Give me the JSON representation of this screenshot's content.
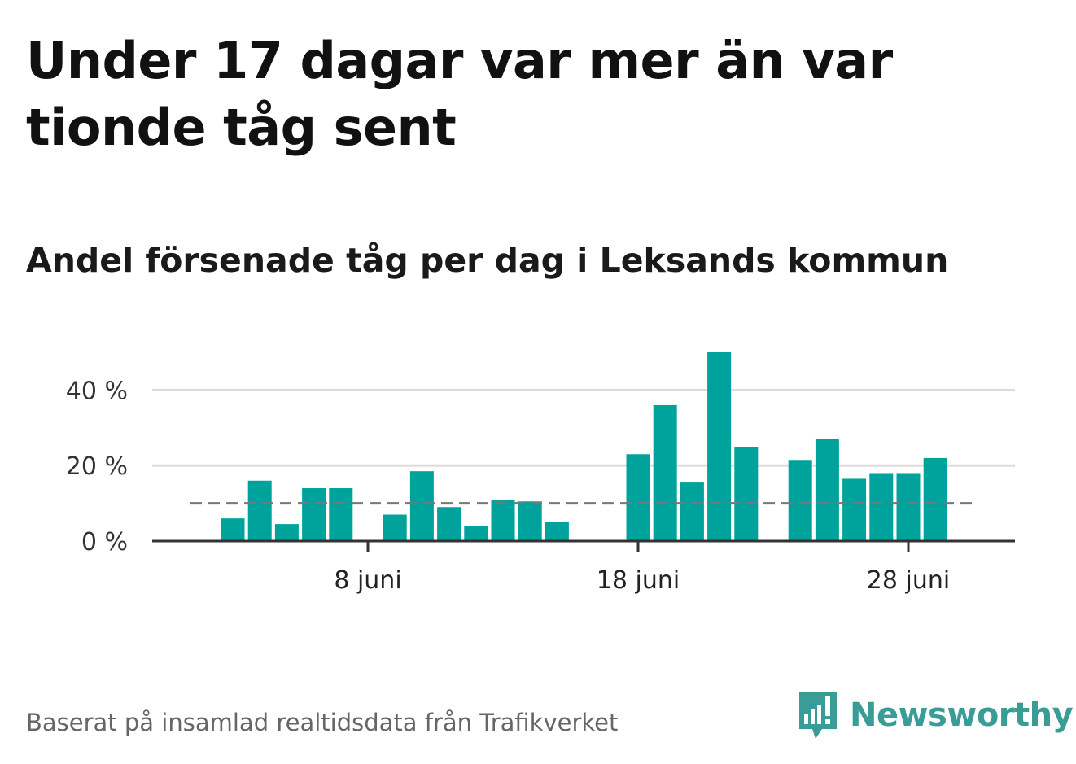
{
  "header": {
    "title": "Under 17 dagar var mer än var tionde tåg sent",
    "subtitle": "Andel försenade tåg per dag i Leksands kommun"
  },
  "footer": {
    "source": "Baserat på insamlad realtidsdata från Trafikverket",
    "brand": "Newsworthy"
  },
  "colors": {
    "bar": "#00a39b",
    "reference_line": "#777777",
    "axis": "#333333",
    "grid": "#dddddd",
    "brand": "#3a9c96"
  },
  "chart_data": {
    "type": "bar",
    "title": "Andel försenade tåg per dag i Leksands kommun",
    "x_unit": "day of June",
    "x": [
      1,
      2,
      3,
      4,
      5,
      6,
      7,
      8,
      9,
      10,
      11,
      12,
      13,
      14,
      15,
      16,
      17,
      18,
      19,
      20,
      21,
      22,
      23,
      24,
      25,
      26,
      27,
      28,
      29,
      30
    ],
    "values": [
      null,
      null,
      6,
      16,
      4.5,
      14,
      14,
      null,
      7,
      18.5,
      9,
      4,
      11,
      10.5,
      5,
      null,
      null,
      23,
      36,
      15.5,
      50,
      25,
      null,
      21.5,
      27,
      16.5,
      18,
      18,
      22,
      null
    ],
    "x_ticks": [
      {
        "day": 8,
        "label": "8 juni"
      },
      {
        "day": 18,
        "label": "18 juni"
      },
      {
        "day": 28,
        "label": "28 juni"
      }
    ],
    "y_ticks": [
      {
        "value": 0,
        "label": "0 %"
      },
      {
        "value": 20,
        "label": "20 %"
      },
      {
        "value": 40,
        "label": "40 %"
      }
    ],
    "ylim": [
      0,
      50
    ],
    "reference_line": {
      "value": 10,
      "style": "dashed"
    },
    "grid": true,
    "legend": "none"
  }
}
